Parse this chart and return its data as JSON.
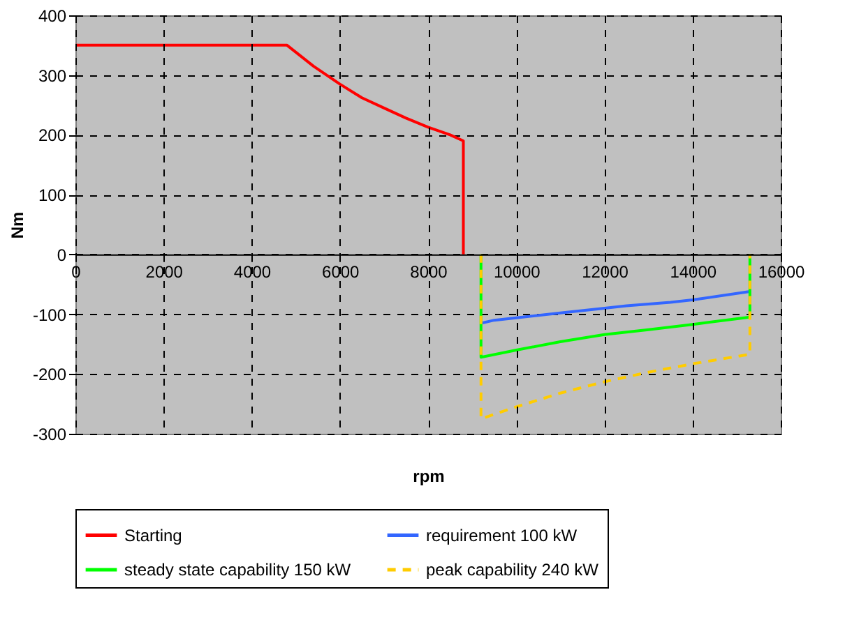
{
  "chart_data": {
    "type": "line",
    "xlabel": "rpm",
    "ylabel": "Nm",
    "xlim": [
      0,
      16000
    ],
    "xticks": [
      0,
      2000,
      4000,
      6000,
      8000,
      10000,
      12000,
      14000,
      16000
    ],
    "ylim": [
      -300,
      400
    ],
    "yticks": [
      -300,
      -200,
      -100,
      0,
      100,
      200,
      300,
      400
    ],
    "grid": true,
    "legend": "bottom",
    "marker": "none",
    "series": [
      {
        "name": "Starting",
        "color": "#ff0000",
        "line_style": "solid",
        "x": [
          0,
          4800,
          5400,
          6000,
          6500,
          7000,
          7500,
          8000,
          8500,
          8800,
          8800
        ],
        "values": [
          350,
          350,
          315,
          285,
          262,
          245,
          228,
          213,
          200,
          190,
          0
        ]
      },
      {
        "name": "requirement 100 kW",
        "color": "#3366ff",
        "line_style": "solid",
        "x": [
          9200,
          9500,
          10000,
          11000,
          12000,
          12500,
          13500,
          14000,
          15300
        ],
        "values": [
          -115,
          -110,
          -106,
          -98,
          -90,
          -86,
          -80,
          -76,
          -62
        ]
      },
      {
        "name": "steady state capability 150 kW",
        "color": "#00ff00",
        "line_style": "solid",
        "x": [
          9200,
          9200,
          10000,
          11000,
          12000,
          13000,
          14000,
          15300,
          15300
        ],
        "values": [
          0,
          -172,
          -160,
          -146,
          -134,
          -126,
          -117,
          -105,
          0
        ]
      },
      {
        "name": "peak capability 240 kW",
        "color": "#ffcc00",
        "line_style": "dashed",
        "x": [
          9200,
          9200,
          10000,
          11000,
          12000,
          13000,
          14000,
          15300,
          15300
        ],
        "values": [
          0,
          -275,
          -255,
          -232,
          -213,
          -197,
          -183,
          -167,
          0
        ]
      }
    ]
  }
}
